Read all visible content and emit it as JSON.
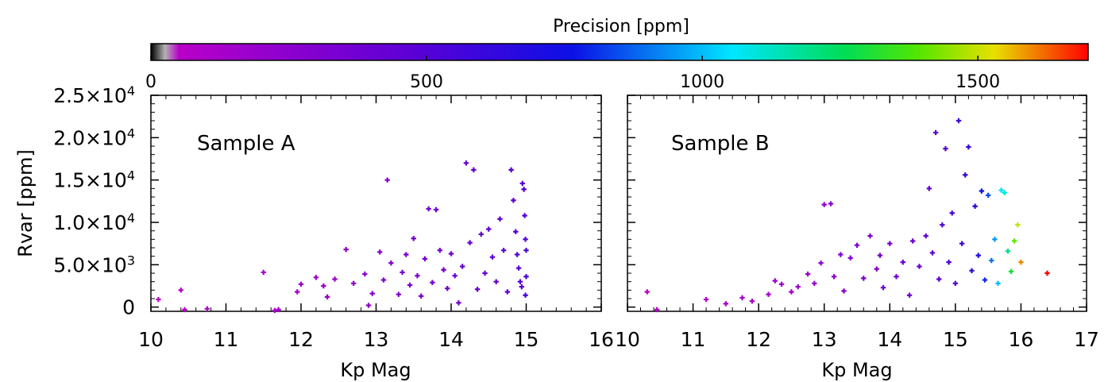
{
  "chart_data": [
    {
      "type": "scatter",
      "panel_label": "Sample A",
      "xlabel": "Kp Mag",
      "ylabel": "Rvar [ppm]",
      "xlim": [
        10,
        16
      ],
      "ylim": [
        -500,
        25000
      ],
      "x_ticks": [
        "10",
        "11",
        "12",
        "13",
        "14",
        "15",
        "16"
      ],
      "y_ticks": [
        {
          "mant": "0",
          "exp": ""
        },
        {
          "mant": "5.0×10",
          "exp": "3"
        },
        {
          "mant": "1.0×10",
          "exp": "4"
        },
        {
          "mant": "1.5×10",
          "exp": "4"
        },
        {
          "mant": "2.0×10",
          "exp": "4"
        },
        {
          "mant": "2.5×10",
          "exp": "4"
        }
      ],
      "points": [
        [
          10.1,
          900,
          60
        ],
        [
          10.4,
          2000,
          75
        ],
        [
          10.45,
          -300,
          80
        ],
        [
          10.75,
          -200,
          90
        ],
        [
          11.5,
          4100,
          110
        ],
        [
          11.65,
          -400,
          120
        ],
        [
          11.7,
          -300,
          130
        ],
        [
          11.95,
          1800,
          150
        ],
        [
          12.0,
          2700,
          160
        ],
        [
          12.2,
          3500,
          180
        ],
        [
          12.3,
          2500,
          190
        ],
        [
          12.35,
          1200,
          200
        ],
        [
          12.45,
          3300,
          210
        ],
        [
          12.6,
          6800,
          230
        ],
        [
          12.7,
          2800,
          240
        ],
        [
          12.85,
          3900,
          250
        ],
        [
          12.9,
          200,
          260
        ],
        [
          12.95,
          1600,
          265
        ],
        [
          13.05,
          6500,
          280
        ],
        [
          13.1,
          3200,
          285
        ],
        [
          13.15,
          15000,
          300
        ],
        [
          13.2,
          5200,
          300
        ],
        [
          13.3,
          1500,
          310
        ],
        [
          13.35,
          4100,
          315
        ],
        [
          13.4,
          6200,
          320
        ],
        [
          13.45,
          2600,
          330
        ],
        [
          13.5,
          8100,
          335
        ],
        [
          13.55,
          3700,
          340
        ],
        [
          13.6,
          1300,
          345
        ],
        [
          13.65,
          5700,
          350
        ],
        [
          13.7,
          11600,
          355
        ],
        [
          13.75,
          2900,
          360
        ],
        [
          13.8,
          11500,
          365
        ],
        [
          13.85,
          6700,
          370
        ],
        [
          13.9,
          4400,
          375
        ],
        [
          13.95,
          2200,
          380
        ],
        [
          14.0,
          6300,
          390
        ],
        [
          14.05,
          3700,
          395
        ],
        [
          14.1,
          500,
          400
        ],
        [
          14.15,
          4800,
          405
        ],
        [
          14.2,
          17000,
          410
        ],
        [
          14.25,
          7600,
          415
        ],
        [
          14.3,
          16200,
          420
        ],
        [
          14.35,
          2100,
          425
        ],
        [
          14.4,
          8600,
          430
        ],
        [
          14.45,
          4000,
          435
        ],
        [
          14.5,
          9200,
          440
        ],
        [
          14.55,
          5900,
          445
        ],
        [
          14.6,
          3000,
          450
        ],
        [
          14.65,
          10400,
          455
        ],
        [
          14.7,
          6700,
          460
        ],
        [
          14.75,
          1800,
          465
        ],
        [
          14.8,
          16200,
          475
        ],
        [
          14.83,
          12600,
          480
        ],
        [
          14.86,
          8900,
          485
        ],
        [
          14.88,
          6200,
          490
        ],
        [
          14.9,
          4600,
          495
        ],
        [
          14.92,
          3000,
          500
        ],
        [
          14.94,
          2400,
          505
        ],
        [
          14.95,
          14600,
          510
        ],
        [
          14.97,
          13900,
          515
        ],
        [
          14.98,
          10800,
          520
        ],
        [
          14.99,
          8000,
          525
        ],
        [
          15.0,
          6700,
          530
        ],
        [
          15.0,
          3600,
          535
        ],
        [
          14.99,
          1400,
          540
        ]
      ]
    },
    {
      "type": "scatter",
      "panel_label": "Sample B",
      "xlabel": "Kp Mag",
      "ylabel": "",
      "xlim": [
        10,
        17
      ],
      "ylim": [
        -500,
        25000
      ],
      "x_ticks": [
        "10",
        "11",
        "12",
        "13",
        "14",
        "15",
        "16",
        "17"
      ],
      "points": [
        [
          10.3,
          1800,
          60
        ],
        [
          10.45,
          -300,
          70
        ],
        [
          11.2,
          900,
          100
        ],
        [
          11.5,
          400,
          110
        ],
        [
          11.75,
          1100,
          120
        ],
        [
          11.9,
          700,
          130
        ],
        [
          12.15,
          1500,
          150
        ],
        [
          12.25,
          3100,
          160
        ],
        [
          12.35,
          2700,
          170
        ],
        [
          12.5,
          1800,
          180
        ],
        [
          12.6,
          2400,
          190
        ],
        [
          12.75,
          3900,
          210
        ],
        [
          12.85,
          2800,
          220
        ],
        [
          12.95,
          5200,
          230
        ],
        [
          13.0,
          12100,
          240
        ],
        [
          13.1,
          12200,
          250
        ],
        [
          13.15,
          3600,
          260
        ],
        [
          13.25,
          6200,
          270
        ],
        [
          13.3,
          1900,
          280
        ],
        [
          13.4,
          5800,
          290
        ],
        [
          13.5,
          7300,
          300
        ],
        [
          13.6,
          3400,
          310
        ],
        [
          13.7,
          8400,
          320
        ],
        [
          13.8,
          4500,
          330
        ],
        [
          13.85,
          6100,
          340
        ],
        [
          13.9,
          2300,
          350
        ],
        [
          14.0,
          7500,
          360
        ],
        [
          14.1,
          3600,
          370
        ],
        [
          14.2,
          5300,
          380
        ],
        [
          14.3,
          1400,
          390
        ],
        [
          14.35,
          7800,
          400
        ],
        [
          14.45,
          4800,
          420
        ],
        [
          14.55,
          8400,
          440
        ],
        [
          14.6,
          14000,
          460
        ],
        [
          14.65,
          6400,
          470
        ],
        [
          14.7,
          20600,
          480
        ],
        [
          14.75,
          3300,
          490
        ],
        [
          14.8,
          9700,
          500
        ],
        [
          14.85,
          18700,
          510
        ],
        [
          14.9,
          5300,
          520
        ],
        [
          14.95,
          11100,
          530
        ],
        [
          15.0,
          2800,
          540
        ],
        [
          15.05,
          22000,
          560
        ],
        [
          15.1,
          7500,
          580
        ],
        [
          15.15,
          15600,
          600
        ],
        [
          15.2,
          18900,
          620
        ],
        [
          15.25,
          4300,
          640
        ],
        [
          15.3,
          11900,
          660
        ],
        [
          15.35,
          6100,
          700
        ],
        [
          15.4,
          13700,
          760
        ],
        [
          15.45,
          3200,
          800
        ],
        [
          15.5,
          13200,
          850
        ],
        [
          15.55,
          5500,
          900
        ],
        [
          15.6,
          8000,
          950
        ],
        [
          15.65,
          2800,
          1000
        ],
        [
          15.7,
          13800,
          1050
        ],
        [
          15.75,
          13500,
          1100
        ],
        [
          15.8,
          6600,
          1200
        ],
        [
          15.85,
          4200,
          1300
        ],
        [
          15.9,
          7800,
          1400
        ],
        [
          15.95,
          9700,
          1500
        ],
        [
          16.0,
          5300,
          1600
        ],
        [
          16.4,
          4000,
          1700
        ]
      ]
    }
  ],
  "colorbar": {
    "title": "Precision [ppm]",
    "min": 0,
    "max": 1700,
    "tick_values": [
      0,
      500,
      1000,
      1500
    ],
    "tick_labels": [
      "0",
      "500",
      "1000",
      "1500"
    ],
    "colormap": "rainbow (black → purple → blue → cyan → green → yellow → red)"
  }
}
